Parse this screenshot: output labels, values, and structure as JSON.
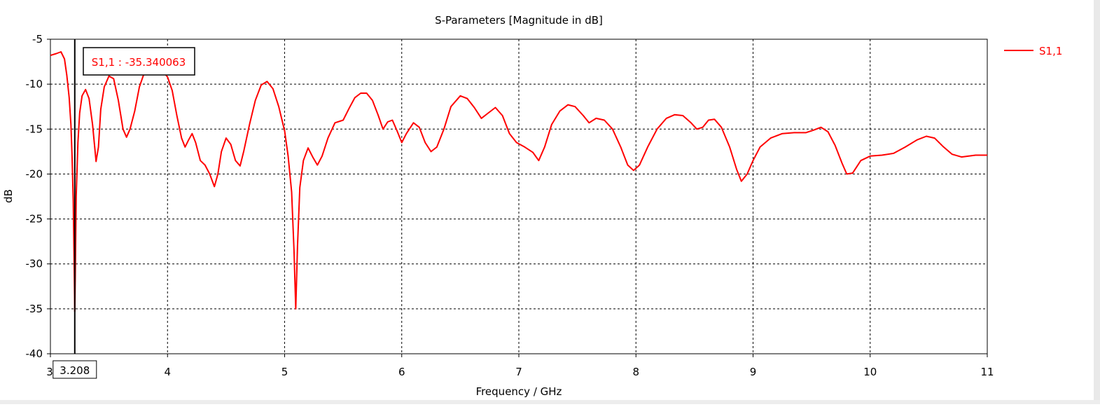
{
  "chart_data": {
    "type": "line",
    "title": "S-Parameters [Magnitude in dB]",
    "xlabel": "Frequency / GHz",
    "ylabel": "dB",
    "xlim": [
      3,
      11
    ],
    "ylim": [
      -40,
      -5
    ],
    "x_ticks": [
      "3",
      "4",
      "5",
      "6",
      "7",
      "8",
      "9",
      "10",
      "11"
    ],
    "y_ticks": [
      "-5",
      "-10",
      "-15",
      "-20",
      "-25",
      "-30",
      "-35",
      "-40"
    ],
    "grid": true,
    "legend_position": "top-right",
    "series": [
      {
        "name": "S1,1",
        "color": "#ff0000",
        "points": [
          [
            3.0,
            -6.8
          ],
          [
            3.05,
            -6.6
          ],
          [
            3.09,
            -6.4
          ],
          [
            3.12,
            -7.2
          ],
          [
            3.14,
            -9.0
          ],
          [
            3.16,
            -11.5
          ],
          [
            3.175,
            -14.5
          ],
          [
            3.185,
            -18.0
          ],
          [
            3.195,
            -23.0
          ],
          [
            3.201,
            -28.5
          ],
          [
            3.205,
            -32.5
          ],
          [
            3.208,
            -35.3
          ],
          [
            3.212,
            -31.5
          ],
          [
            3.22,
            -22.5
          ],
          [
            3.235,
            -16.5
          ],
          [
            3.25,
            -13.2
          ],
          [
            3.27,
            -11.3
          ],
          [
            3.3,
            -10.6
          ],
          [
            3.33,
            -11.6
          ],
          [
            3.36,
            -14.5
          ],
          [
            3.39,
            -18.6
          ],
          [
            3.41,
            -17.0
          ],
          [
            3.43,
            -12.8
          ],
          [
            3.46,
            -10.3
          ],
          [
            3.5,
            -9.1
          ],
          [
            3.54,
            -9.4
          ],
          [
            3.58,
            -11.8
          ],
          [
            3.62,
            -15.0
          ],
          [
            3.65,
            -15.9
          ],
          [
            3.68,
            -15.0
          ],
          [
            3.72,
            -13.0
          ],
          [
            3.76,
            -10.3
          ],
          [
            3.8,
            -8.8
          ],
          [
            3.85,
            -8.3
          ],
          [
            3.9,
            -8.3
          ],
          [
            3.96,
            -8.6
          ],
          [
            4.0,
            -9.2
          ],
          [
            4.04,
            -10.7
          ],
          [
            4.08,
            -13.5
          ],
          [
            4.12,
            -16.0
          ],
          [
            4.15,
            -17.0
          ],
          [
            4.18,
            -16.2
          ],
          [
            4.21,
            -15.5
          ],
          [
            4.24,
            -16.5
          ],
          [
            4.28,
            -18.5
          ],
          [
            4.32,
            -19.0
          ],
          [
            4.36,
            -20.0
          ],
          [
            4.4,
            -21.4
          ],
          [
            4.43,
            -20.0
          ],
          [
            4.46,
            -17.5
          ],
          [
            4.5,
            -16.0
          ],
          [
            4.54,
            -16.7
          ],
          [
            4.58,
            -18.5
          ],
          [
            4.62,
            -19.1
          ],
          [
            4.65,
            -17.5
          ],
          [
            4.7,
            -14.5
          ],
          [
            4.75,
            -11.8
          ],
          [
            4.8,
            -10.1
          ],
          [
            4.85,
            -9.7
          ],
          [
            4.9,
            -10.5
          ],
          [
            4.95,
            -12.5
          ],
          [
            5.0,
            -15.2
          ],
          [
            5.03,
            -18.0
          ],
          [
            5.06,
            -22.0
          ],
          [
            5.08,
            -28.5
          ],
          [
            5.095,
            -35.0
          ],
          [
            5.11,
            -28.0
          ],
          [
            5.13,
            -21.5
          ],
          [
            5.16,
            -18.5
          ],
          [
            5.2,
            -17.1
          ],
          [
            5.24,
            -18.1
          ],
          [
            5.28,
            -19.0
          ],
          [
            5.32,
            -18.0
          ],
          [
            5.37,
            -16.0
          ],
          [
            5.43,
            -14.3
          ],
          [
            5.5,
            -14.0
          ],
          [
            5.55,
            -12.7
          ],
          [
            5.6,
            -11.5
          ],
          [
            5.65,
            -11.0
          ],
          [
            5.7,
            -11.0
          ],
          [
            5.75,
            -11.8
          ],
          [
            5.8,
            -13.5
          ],
          [
            5.84,
            -15.0
          ],
          [
            5.88,
            -14.2
          ],
          [
            5.92,
            -14.0
          ],
          [
            5.96,
            -15.2
          ],
          [
            6.0,
            -16.5
          ],
          [
            6.04,
            -15.5
          ],
          [
            6.1,
            -14.3
          ],
          [
            6.15,
            -14.8
          ],
          [
            6.2,
            -16.5
          ],
          [
            6.25,
            -17.5
          ],
          [
            6.3,
            -17.0
          ],
          [
            6.36,
            -15.0
          ],
          [
            6.42,
            -12.5
          ],
          [
            6.5,
            -11.3
          ],
          [
            6.56,
            -11.6
          ],
          [
            6.62,
            -12.6
          ],
          [
            6.68,
            -13.8
          ],
          [
            6.73,
            -13.3
          ],
          [
            6.8,
            -12.6
          ],
          [
            6.86,
            -13.5
          ],
          [
            6.92,
            -15.5
          ],
          [
            6.98,
            -16.5
          ],
          [
            7.05,
            -17.0
          ],
          [
            7.12,
            -17.6
          ],
          [
            7.17,
            -18.5
          ],
          [
            7.22,
            -17.0
          ],
          [
            7.28,
            -14.5
          ],
          [
            7.35,
            -13.0
          ],
          [
            7.42,
            -12.3
          ],
          [
            7.48,
            -12.5
          ],
          [
            7.55,
            -13.5
          ],
          [
            7.6,
            -14.3
          ],
          [
            7.66,
            -13.8
          ],
          [
            7.73,
            -14.0
          ],
          [
            7.8,
            -15.0
          ],
          [
            7.87,
            -17.0
          ],
          [
            7.93,
            -19.0
          ],
          [
            7.98,
            -19.6
          ],
          [
            8.03,
            -19.0
          ],
          [
            8.1,
            -17.0
          ],
          [
            8.18,
            -15.0
          ],
          [
            8.26,
            -13.8
          ],
          [
            8.33,
            -13.4
          ],
          [
            8.4,
            -13.5
          ],
          [
            8.47,
            -14.3
          ],
          [
            8.52,
            -15.0
          ],
          [
            8.57,
            -14.8
          ],
          [
            8.62,
            -14.0
          ],
          [
            8.67,
            -13.9
          ],
          [
            8.73,
            -14.8
          ],
          [
            8.8,
            -17.0
          ],
          [
            8.86,
            -19.5
          ],
          [
            8.9,
            -20.8
          ],
          [
            8.95,
            -20.0
          ],
          [
            9.0,
            -18.5
          ],
          [
            9.06,
            -17.0
          ],
          [
            9.15,
            -16.0
          ],
          [
            9.25,
            -15.5
          ],
          [
            9.35,
            -15.4
          ],
          [
            9.45,
            -15.4
          ],
          [
            9.52,
            -15.1
          ],
          [
            9.58,
            -14.8
          ],
          [
            9.64,
            -15.3
          ],
          [
            9.7,
            -16.8
          ],
          [
            9.76,
            -18.8
          ],
          [
            9.8,
            -20.0
          ],
          [
            9.85,
            -19.9
          ],
          [
            9.92,
            -18.5
          ],
          [
            10.0,
            -18.0
          ],
          [
            10.1,
            -17.9
          ],
          [
            10.2,
            -17.7
          ],
          [
            10.3,
            -17.0
          ],
          [
            10.4,
            -16.2
          ],
          [
            10.48,
            -15.8
          ],
          [
            10.55,
            -16.0
          ],
          [
            10.62,
            -16.9
          ],
          [
            10.7,
            -17.8
          ],
          [
            10.78,
            -18.1
          ],
          [
            10.9,
            -17.9
          ],
          [
            11.0,
            -17.9
          ]
        ]
      }
    ],
    "marker": {
      "x": 3.208,
      "x_label": "3.208",
      "label": "S1,1 : -35.340063"
    }
  }
}
